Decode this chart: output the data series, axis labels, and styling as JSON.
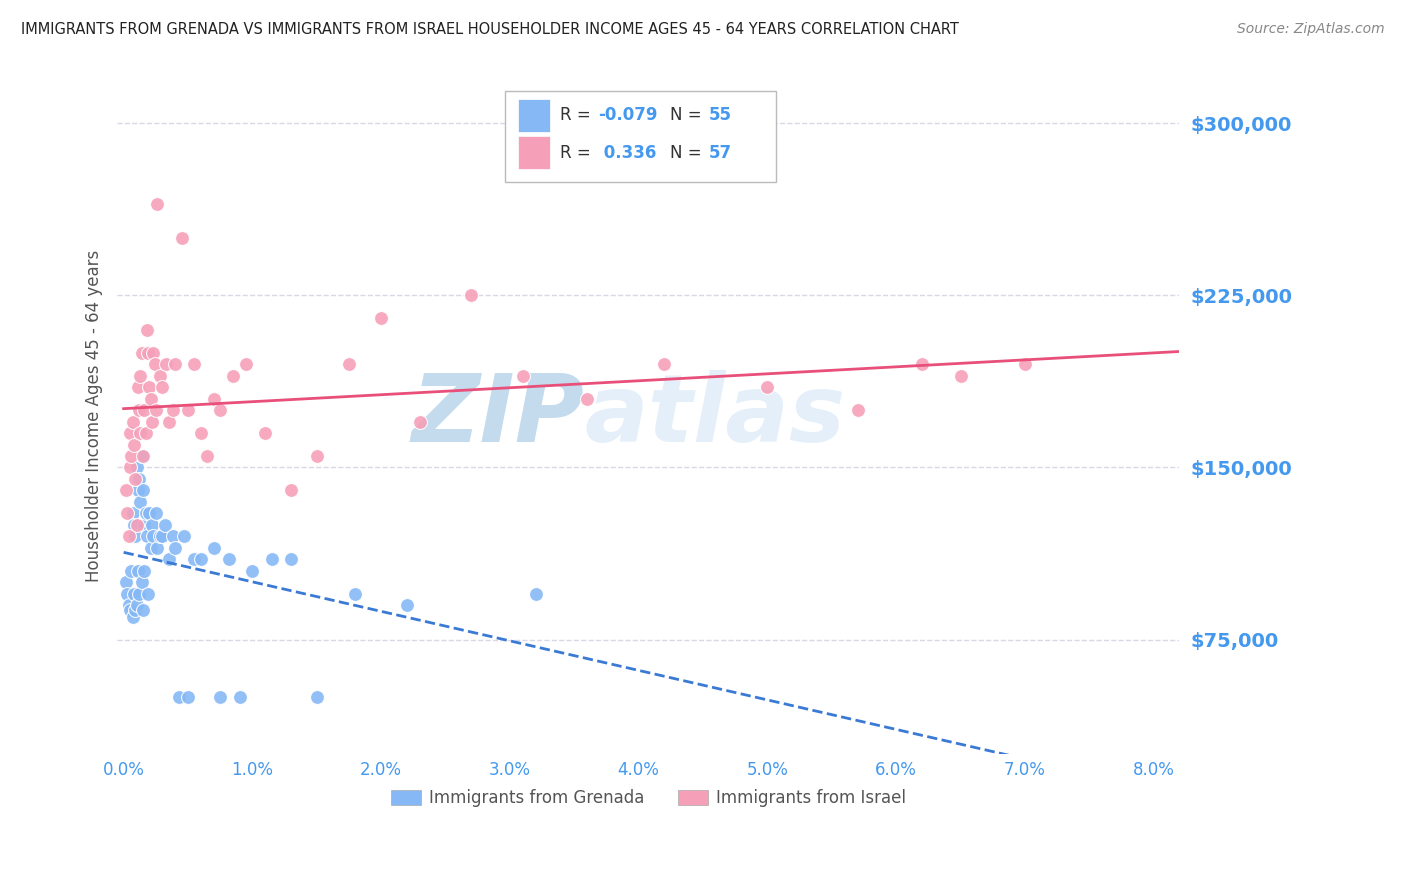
{
  "title": "IMMIGRANTS FROM GRENADA VS IMMIGRANTS FROM ISRAEL HOUSEHOLDER INCOME AGES 45 - 64 YEARS CORRELATION CHART",
  "source": "Source: ZipAtlas.com",
  "ylabel": "Householder Income Ages 45 - 64 years",
  "yticks": [
    75000,
    150000,
    225000,
    300000
  ],
  "ytick_labels": [
    "$75,000",
    "$150,000",
    "$225,000",
    "$300,000"
  ],
  "ymin": 25000,
  "ymax": 320000,
  "xmin": -0.0005,
  "xmax": 0.082,
  "grenada_color": "#85b8f5",
  "israel_color": "#f5a0b8",
  "trend_grenada_color": "#3a7ad4",
  "trend_israel_color": "#e8507a",
  "background_color": "#ffffff",
  "grid_color": "#d8d8e8",
  "axis_label_color": "#4499ee",
  "title_color": "#222222",
  "watermark_zi_color": "#5599cc",
  "watermark_atlas_color": "#aaccee",
  "grenada_x": [
    0.0002,
    0.0003,
    0.0004,
    0.0005,
    0.0006,
    0.0007,
    0.0007,
    0.0008,
    0.0008,
    0.0009,
    0.0009,
    0.001,
    0.001,
    0.0011,
    0.0011,
    0.0012,
    0.0012,
    0.0013,
    0.0014,
    0.0014,
    0.0015,
    0.0015,
    0.0016,
    0.0016,
    0.0017,
    0.0018,
    0.0019,
    0.002,
    0.0021,
    0.0022,
    0.0023,
    0.0025,
    0.0026,
    0.0028,
    0.003,
    0.0032,
    0.0035,
    0.0038,
    0.004,
    0.0043,
    0.0047,
    0.005,
    0.0055,
    0.006,
    0.007,
    0.0075,
    0.0082,
    0.009,
    0.01,
    0.0115,
    0.013,
    0.015,
    0.018,
    0.022,
    0.032
  ],
  "grenada_y": [
    100000,
    95000,
    90000,
    88000,
    105000,
    130000,
    85000,
    125000,
    95000,
    120000,
    88000,
    150000,
    90000,
    140000,
    105000,
    145000,
    95000,
    135000,
    155000,
    100000,
    140000,
    88000,
    125000,
    105000,
    130000,
    120000,
    95000,
    130000,
    115000,
    125000,
    120000,
    130000,
    115000,
    120000,
    120000,
    125000,
    110000,
    120000,
    115000,
    50000,
    120000,
    50000,
    110000,
    110000,
    115000,
    50000,
    110000,
    50000,
    105000,
    110000,
    110000,
    50000,
    95000,
    90000,
    95000
  ],
  "israel_x": [
    0.0002,
    0.0003,
    0.0004,
    0.0005,
    0.0005,
    0.0006,
    0.0007,
    0.0008,
    0.0009,
    0.001,
    0.0011,
    0.0012,
    0.0013,
    0.0013,
    0.0014,
    0.0015,
    0.0016,
    0.0017,
    0.0018,
    0.0019,
    0.002,
    0.0021,
    0.0022,
    0.0023,
    0.0024,
    0.0025,
    0.0026,
    0.0028,
    0.003,
    0.0033,
    0.0035,
    0.0038,
    0.004,
    0.0045,
    0.005,
    0.0055,
    0.006,
    0.0065,
    0.007,
    0.0075,
    0.0085,
    0.0095,
    0.011,
    0.013,
    0.015,
    0.0175,
    0.02,
    0.023,
    0.027,
    0.031,
    0.036,
    0.042,
    0.05,
    0.057,
    0.062,
    0.065,
    0.07
  ],
  "israel_y": [
    140000,
    130000,
    120000,
    165000,
    150000,
    155000,
    170000,
    160000,
    145000,
    125000,
    185000,
    175000,
    165000,
    190000,
    200000,
    155000,
    175000,
    165000,
    210000,
    200000,
    185000,
    180000,
    170000,
    200000,
    195000,
    175000,
    265000,
    190000,
    185000,
    195000,
    170000,
    175000,
    195000,
    250000,
    175000,
    195000,
    165000,
    155000,
    180000,
    175000,
    190000,
    195000,
    165000,
    140000,
    155000,
    195000,
    215000,
    170000,
    225000,
    190000,
    180000,
    195000,
    185000,
    175000,
    195000,
    190000,
    195000
  ]
}
